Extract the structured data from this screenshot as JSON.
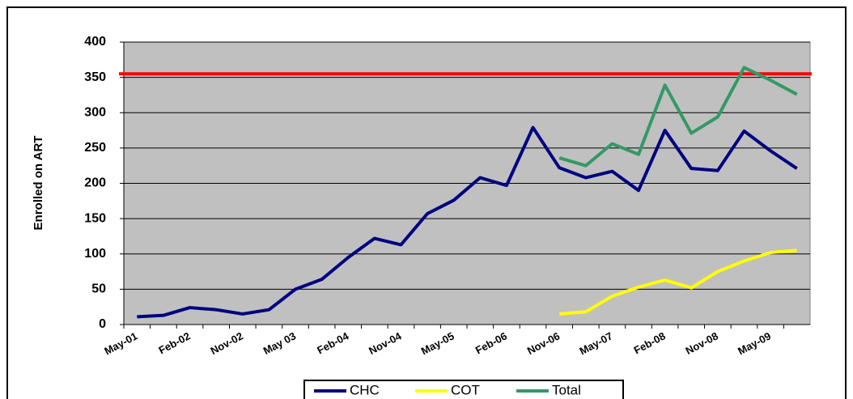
{
  "chart_data": {
    "type": "line",
    "y_label": "Enrolled on ART",
    "categories": [
      "May-01",
      null,
      "Feb-02",
      null,
      "Nov-02",
      null,
      "May 03",
      null,
      "Feb-04",
      null,
      "Nov-04",
      null,
      "May-05",
      null,
      "Feb-06",
      null,
      "Nov-06",
      null,
      "May-07",
      null,
      "Feb-08",
      null,
      "Nov-08",
      null,
      "May-09",
      null
    ],
    "series": [
      {
        "name": "CHC",
        "color": "#000080",
        "values": [
          11,
          13,
          24,
          21,
          15,
          21,
          50,
          64,
          95,
          122,
          113,
          157,
          176,
          208,
          197,
          279,
          222,
          208,
          217,
          190,
          275,
          221,
          218,
          274,
          246,
          221
        ]
      },
      {
        "name": "COT",
        "color": "#ffff00",
        "values": [
          null,
          null,
          null,
          null,
          null,
          null,
          null,
          null,
          null,
          null,
          null,
          null,
          null,
          null,
          null,
          null,
          15,
          18,
          40,
          53,
          63,
          52,
          75,
          90,
          102,
          105
        ]
      },
      {
        "name": "Total",
        "color": "#339966",
        "values": [
          null,
          null,
          null,
          null,
          null,
          null,
          null,
          null,
          null,
          null,
          null,
          null,
          null,
          null,
          null,
          null,
          236,
          225,
          256,
          241,
          339,
          271,
          294,
          364,
          346,
          326
        ]
      }
    ],
    "reference_line": {
      "value": 355,
      "color": "#ff0000"
    },
    "ylim": [
      0,
      400
    ],
    "yticks": [
      0,
      50,
      100,
      150,
      200,
      250,
      300,
      350,
      400
    ],
    "grid": true,
    "plot_background": "#c0c0c0",
    "legend": "bottom"
  }
}
